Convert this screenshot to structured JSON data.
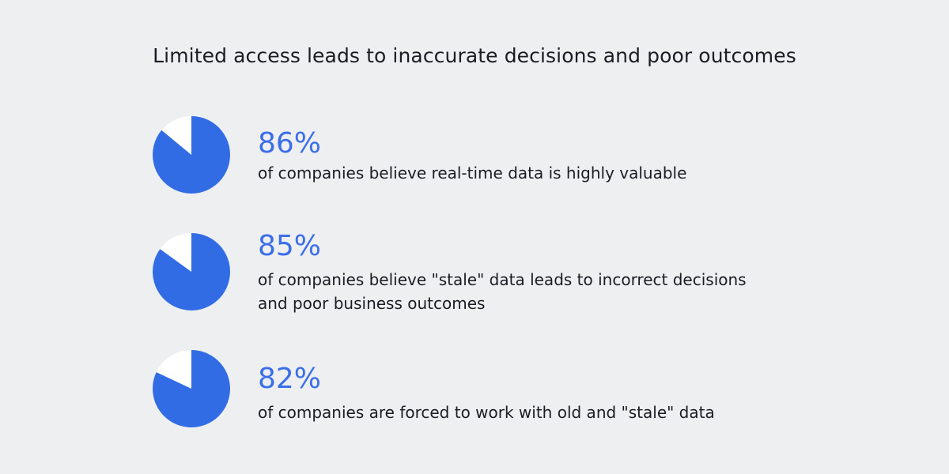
{
  "chart_data": {
    "type": "pie",
    "title": "Limited access leads to inaccurate decisions and poor outcomes",
    "colors": {
      "filled": "#326ce5",
      "remainder": "#ffffff",
      "accent_text": "#3b6ee8"
    },
    "items": [
      {
        "value": 86,
        "label": "86%",
        "description": "of companies believe real-time data is highly valuable"
      },
      {
        "value": 85,
        "label": "85%",
        "description": "of companies believe \"stale\" data leads to incorrect decisions and poor business outcomes"
      },
      {
        "value": 82,
        "label": "82%",
        "description": "of companies are forced to work with old and \"stale\" data"
      }
    ]
  }
}
